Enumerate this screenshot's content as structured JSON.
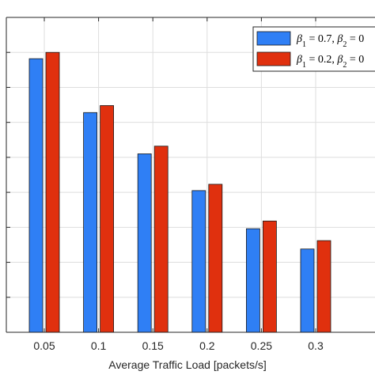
{
  "chart_data": {
    "type": "bar",
    "categories": [
      "0.05",
      "0.1",
      "0.15",
      "0.2",
      "0.25",
      "0.3"
    ],
    "series": [
      {
        "name": "β1 = 0.7, β2 = 0",
        "color": "#2f7ff5",
        "values": [
          0.782,
          0.628,
          0.51,
          0.405,
          0.296,
          0.238
        ]
      },
      {
        "name": "β1 = 0.2, β2 = 0",
        "color": "#e0300e",
        "values": [
          0.8,
          0.648,
          0.532,
          0.423,
          0.318,
          0.262
        ]
      }
    ],
    "legend": [
      {
        "sym1": "β",
        "sub1": "1",
        "mid": " = 0.7, ",
        "sym2": "β",
        "sub2": "2",
        "tail": " = 0"
      },
      {
        "sym1": "β",
        "sub1": "1",
        "mid": " = 0.2, ",
        "sym2": "β",
        "sub2": "2",
        "tail": " = 0"
      }
    ],
    "xlabel": "Average Traffic Load [packets/s]",
    "ylabel": "",
    "ylim": [
      0,
      0.9
    ],
    "grid": true,
    "legend_position": "top-right"
  }
}
